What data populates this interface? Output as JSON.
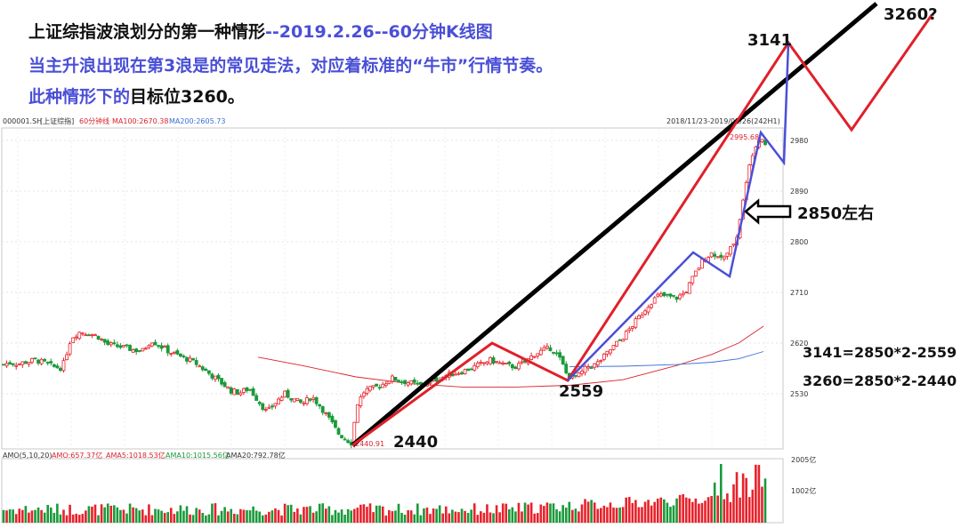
{
  "header": {
    "line1": "上证综指波浪划分的第一种情形",
    "line1_date": "--2019.2.26--60分钟K线图",
    "line2": "当主升浪出现在第3浪是的常见走法，对应着标准的“牛市”行情节奏。",
    "line3_a": "此种情形下的",
    "line3_b": "目标位3260。"
  },
  "chart_info": {
    "symbol": "000001.SH",
    "name": "[上证综指]",
    "period": "60分钟线",
    "ma100_label": "MA100:2670.38",
    "ma200_label": "MA200:2605.73",
    "range": "2018/11/23-2019/02/26(242H1)",
    "high_label": "2995.68",
    "low_label": "2440.91"
  },
  "volume_info": {
    "legend": "AMO(5,10,20)",
    "amo": "AMO:657.37亿",
    "ama5": "AMA5:1018.53亿",
    "ama10": "AMA10:1015.56亿",
    "ama20": "AMA20:792.78亿",
    "tick_top": "2005亿",
    "tick_mid": "1002亿"
  },
  "annotations": {
    "p2440": "2440",
    "p2559": "2559",
    "p3141": "3141",
    "p3260": "3260?",
    "p2850": "2850左右",
    "eq1": "3141=2850*2-2559",
    "eq2": "3260=2850*2-2440"
  },
  "colors": {
    "up": "#e8212a",
    "down": "#1a9a3a",
    "ma100": "#d9232d",
    "ma200": "#3a6fd6",
    "wave_red": "#e0202a",
    "wave_blue": "#4a4fd6",
    "trend": "#000000"
  },
  "chart_data": {
    "type": "candlestick",
    "y_ticks": [
      2530,
      2620,
      2710,
      2800,
      2890,
      2980
    ],
    "ylim": [
      2440,
      3000
    ],
    "bars": 242,
    "close_path": [
      [
        0,
        2580
      ],
      [
        10,
        2585
      ],
      [
        20,
        2583
      ],
      [
        30,
        2587
      ],
      [
        40,
        2590
      ],
      [
        50,
        2585
      ],
      [
        60,
        2578
      ],
      [
        70,
        2576
      ],
      [
        80,
        2630
      ],
      [
        90,
        2640
      ],
      [
        100,
        2637
      ],
      [
        110,
        2632
      ],
      [
        120,
        2618
      ],
      [
        130,
        2615
      ],
      [
        140,
        2612
      ],
      [
        150,
        2608
      ],
      [
        160,
        2606
      ],
      [
        170,
        2625
      ],
      [
        180,
        2615
      ],
      [
        190,
        2605
      ],
      [
        200,
        2598
      ],
      [
        210,
        2592
      ],
      [
        220,
        2584
      ],
      [
        230,
        2572
      ],
      [
        240,
        2560
      ],
      [
        250,
        2548
      ],
      [
        260,
        2535
      ],
      [
        270,
        2532
      ],
      [
        280,
        2540
      ],
      [
        290,
        2518
      ],
      [
        300,
        2497
      ],
      [
        310,
        2515
      ],
      [
        320,
        2530
      ],
      [
        330,
        2520
      ],
      [
        340,
        2512
      ],
      [
        350,
        2525
      ],
      [
        360,
        2508
      ],
      [
        370,
        2485
      ],
      [
        380,
        2460
      ],
      [
        390,
        2448
      ],
      [
        396,
        2442
      ],
      [
        400,
        2508
      ],
      [
        410,
        2536
      ],
      [
        420,
        2540
      ],
      [
        430,
        2547
      ],
      [
        440,
        2558
      ],
      [
        450,
        2553
      ],
      [
        460,
        2550
      ],
      [
        470,
        2545
      ],
      [
        480,
        2549
      ],
      [
        490,
        2555
      ],
      [
        500,
        2562
      ],
      [
        510,
        2566
      ],
      [
        520,
        2570
      ],
      [
        530,
        2576
      ],
      [
        540,
        2582
      ],
      [
        550,
        2590
      ],
      [
        560,
        2585
      ],
      [
        570,
        2580
      ],
      [
        580,
        2578
      ],
      [
        590,
        2586
      ],
      [
        600,
        2600
      ],
      [
        610,
        2607
      ],
      [
        620,
        2612
      ],
      [
        630,
        2590
      ],
      [
        638,
        2560
      ],
      [
        650,
        2562
      ],
      [
        660,
        2578
      ],
      [
        670,
        2582
      ],
      [
        680,
        2598
      ],
      [
        690,
        2615
      ],
      [
        700,
        2630
      ],
      [
        710,
        2650
      ],
      [
        720,
        2670
      ],
      [
        730,
        2690
      ],
      [
        740,
        2705
      ],
      [
        750,
        2703
      ],
      [
        760,
        2700
      ],
      [
        770,
        2710
      ],
      [
        780,
        2740
      ],
      [
        790,
        2768
      ],
      [
        800,
        2780
      ],
      [
        810,
        2775
      ],
      [
        815,
        2770
      ],
      [
        820,
        2785
      ],
      [
        828,
        2810
      ],
      [
        836,
        2880
      ],
      [
        844,
        2950
      ],
      [
        852,
        2985
      ],
      [
        856,
        2985
      ],
      [
        860,
        2975
      ]
    ]
  }
}
